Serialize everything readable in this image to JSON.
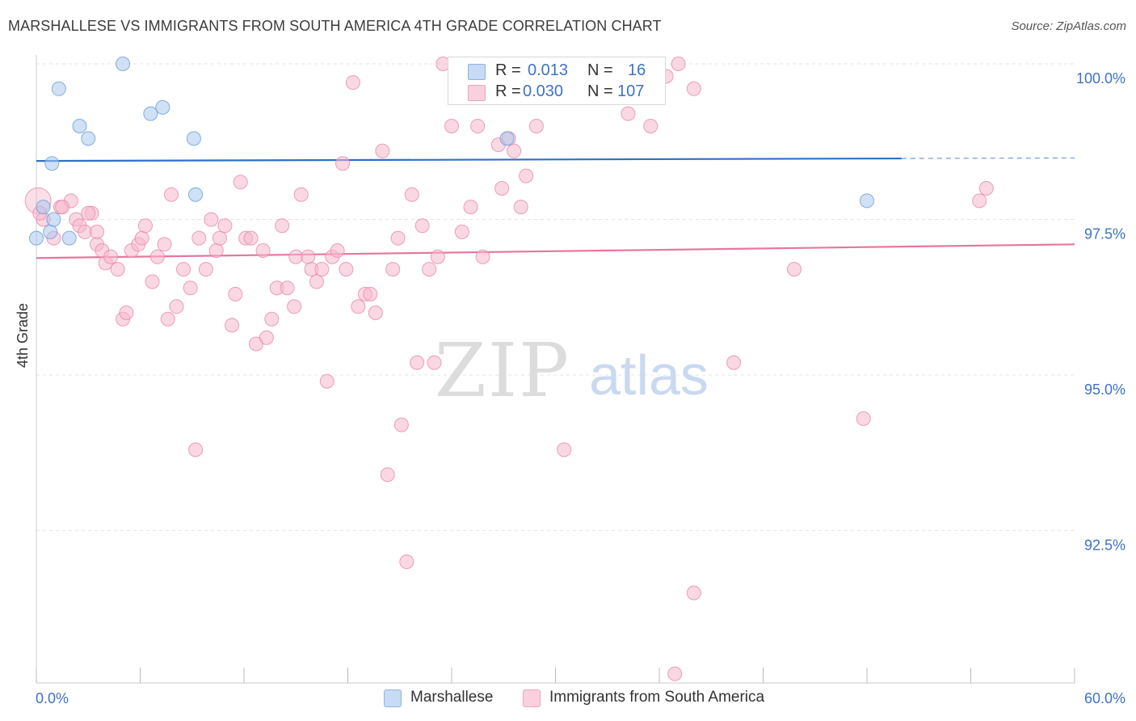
{
  "header": {
    "title": "MARSHALLESE VS IMMIGRANTS FROM SOUTH AMERICA 4TH GRADE CORRELATION CHART",
    "source": "Source: ZipAtlas.com"
  },
  "watermark": {
    "zip": "ZIP",
    "atlas": "atlas"
  },
  "stats_legend": {
    "rows": [
      {
        "r_label": "R =",
        "r_value": "0.013",
        "n_label": "N =",
        "n_value": "16",
        "color": "#aac8ef"
      },
      {
        "r_label": "R =",
        "r_value": "0.030",
        "n_label": "N =",
        "n_value": "107",
        "color": "#f6b8cc"
      }
    ]
  },
  "bottom_legend": {
    "items": [
      {
        "label": "Marshallese",
        "color": "#aac8ef"
      },
      {
        "label": "Immigrants from South America",
        "color": "#f6b8cc"
      }
    ]
  },
  "chart_data": {
    "type": "scatter",
    "title": "MARSHALLESE VS IMMIGRANTS FROM SOUTH AMERICA 4TH GRADE CORRELATION CHART",
    "xlabel": "",
    "ylabel": "4th Grade",
    "xlim": [
      0,
      60
    ],
    "ylim": [
      90.0,
      100.35
    ],
    "x_tick_labels": [
      "0.0%",
      "60.0%"
    ],
    "y_ticks": [
      92.5,
      95.0,
      97.5,
      100.0
    ],
    "y_tick_labels": [
      "92.5%",
      "95.0%",
      "97.5%",
      "100.0%"
    ],
    "grid": true,
    "legend_position": "bottom",
    "series": [
      {
        "name": "Marshallese",
        "color": "#aac8ef",
        "stroke": "#6a9bd8",
        "trend_color": "#2f6fc8",
        "trend": {
          "x0": 0,
          "y0": 98.44,
          "x1": 50,
          "y1": 98.48,
          "dash_to_x": 60
        },
        "points": [
          [
            0.0,
            97.2
          ],
          [
            0.8,
            97.3
          ],
          [
            1.0,
            97.5
          ],
          [
            0.4,
            97.7
          ],
          [
            0.9,
            98.4
          ],
          [
            1.3,
            99.6
          ],
          [
            2.5,
            99.0
          ],
          [
            3.0,
            98.8
          ],
          [
            5.0,
            100.0
          ],
          [
            6.6,
            99.2
          ],
          [
            7.3,
            99.3
          ],
          [
            9.1,
            98.8
          ],
          [
            9.2,
            97.9
          ],
          [
            1.9,
            97.2
          ],
          [
            27.2,
            98.8
          ],
          [
            48.0,
            97.8
          ]
        ]
      },
      {
        "name": "Immigrants from South America",
        "color": "#f6b8cc",
        "stroke": "#e888a8",
        "trend_color": "#e8769c",
        "trend": {
          "x0": 0,
          "y0": 96.88,
          "x1": 60,
          "y1": 97.1
        },
        "points": [
          [
            0.1,
            97.8
          ],
          [
            0.4,
            97.5
          ],
          [
            1.0,
            97.2
          ],
          [
            1.4,
            97.7
          ],
          [
            2.0,
            97.8
          ],
          [
            2.3,
            97.5
          ],
          [
            2.5,
            97.4
          ],
          [
            2.8,
            97.3
          ],
          [
            3.2,
            97.6
          ],
          [
            3.5,
            97.1
          ],
          [
            3.5,
            97.3
          ],
          [
            3.8,
            97.0
          ],
          [
            4.0,
            96.8
          ],
          [
            4.3,
            96.9
          ],
          [
            4.7,
            96.7
          ],
          [
            5.0,
            95.9
          ],
          [
            5.2,
            96.0
          ],
          [
            5.5,
            97.0
          ],
          [
            5.9,
            97.1
          ],
          [
            6.1,
            97.2
          ],
          [
            6.3,
            97.4
          ],
          [
            6.7,
            96.5
          ],
          [
            7.0,
            96.9
          ],
          [
            7.4,
            97.1
          ],
          [
            7.6,
            95.9
          ],
          [
            7.8,
            97.9
          ],
          [
            8.1,
            96.1
          ],
          [
            8.5,
            96.7
          ],
          [
            8.9,
            96.4
          ],
          [
            9.2,
            93.8
          ],
          [
            9.4,
            97.2
          ],
          [
            9.8,
            96.7
          ],
          [
            10.1,
            97.5
          ],
          [
            10.4,
            97.0
          ],
          [
            10.6,
            97.2
          ],
          [
            10.9,
            97.4
          ],
          [
            11.3,
            95.8
          ],
          [
            11.5,
            96.3
          ],
          [
            11.8,
            98.1
          ],
          [
            12.1,
            97.2
          ],
          [
            12.4,
            97.2
          ],
          [
            12.7,
            95.5
          ],
          [
            13.1,
            97.0
          ],
          [
            13.3,
            95.6
          ],
          [
            13.6,
            95.9
          ],
          [
            13.9,
            96.4
          ],
          [
            14.2,
            97.4
          ],
          [
            14.5,
            96.4
          ],
          [
            14.9,
            96.1
          ],
          [
            15.0,
            96.9
          ],
          [
            15.3,
            97.9
          ],
          [
            15.7,
            96.9
          ],
          [
            15.9,
            96.7
          ],
          [
            16.2,
            96.5
          ],
          [
            16.5,
            96.7
          ],
          [
            16.8,
            94.9
          ],
          [
            17.1,
            96.9
          ],
          [
            17.4,
            97.0
          ],
          [
            17.7,
            98.4
          ],
          [
            17.9,
            96.7
          ],
          [
            18.3,
            99.7
          ],
          [
            18.6,
            96.1
          ],
          [
            19.0,
            96.3
          ],
          [
            19.3,
            96.3
          ],
          [
            19.6,
            96.0
          ],
          [
            20.0,
            98.6
          ],
          [
            20.3,
            93.4
          ],
          [
            20.6,
            96.7
          ],
          [
            20.9,
            97.2
          ],
          [
            21.1,
            94.2
          ],
          [
            21.4,
            92.0
          ],
          [
            21.7,
            97.9
          ],
          [
            22.0,
            95.2
          ],
          [
            22.3,
            97.4
          ],
          [
            22.7,
            96.7
          ],
          [
            23.0,
            95.2
          ],
          [
            23.2,
            96.9
          ],
          [
            23.5,
            100.0
          ],
          [
            24.0,
            99.0
          ],
          [
            24.6,
            97.3
          ],
          [
            25.1,
            97.7
          ],
          [
            25.5,
            99.0
          ],
          [
            25.8,
            96.9
          ],
          [
            26.7,
            98.7
          ],
          [
            26.9,
            98.0
          ],
          [
            27.3,
            98.8
          ],
          [
            27.6,
            98.6
          ],
          [
            28.0,
            97.7
          ],
          [
            28.3,
            98.2
          ],
          [
            28.9,
            99.0
          ],
          [
            30.5,
            93.8
          ],
          [
            33.8,
            99.7
          ],
          [
            34.2,
            99.2
          ],
          [
            35.5,
            99.0
          ],
          [
            36.4,
            99.8
          ],
          [
            36.9,
            90.2
          ],
          [
            37.1,
            100.0
          ],
          [
            38.0,
            99.6
          ],
          [
            38.0,
            91.5
          ],
          [
            40.3,
            95.2
          ],
          [
            43.8,
            96.7
          ],
          [
            47.8,
            94.3
          ],
          [
            54.5,
            97.8
          ],
          [
            54.9,
            98.0
          ],
          [
            0.2,
            97.6
          ],
          [
            1.5,
            97.7
          ],
          [
            3.0,
            97.6
          ]
        ]
      }
    ]
  }
}
